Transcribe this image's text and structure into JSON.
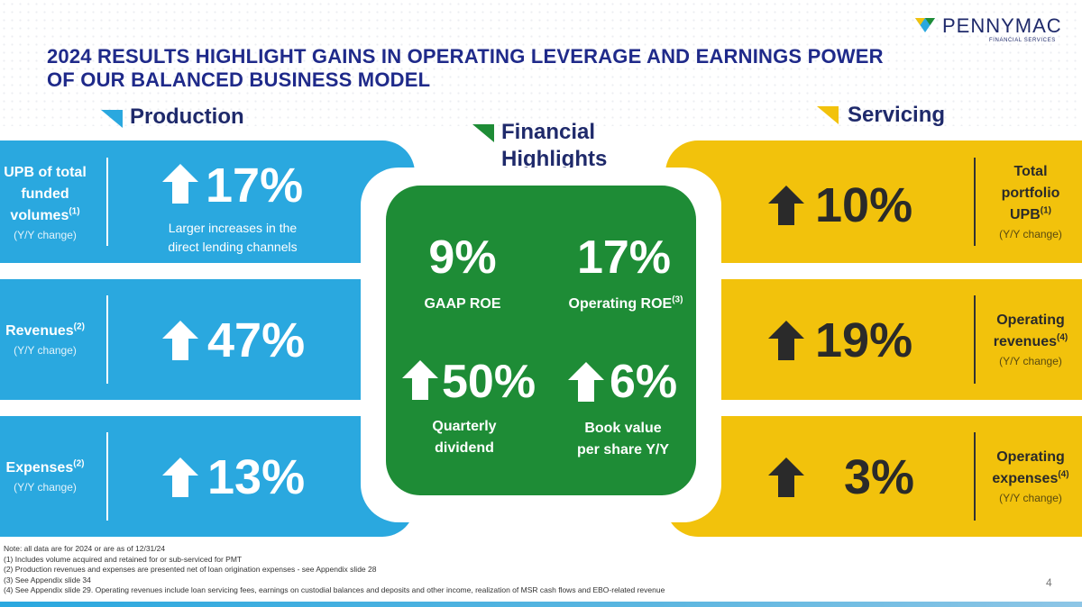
{
  "logo": {
    "name": "PENNYMAC",
    "sub": "FINANCIAL SERVICES"
  },
  "title_line1": "2024 RESULTS HIGHLIGHT GAINS IN OPERATING LEVERAGE AND EARNINGS POWER",
  "title_line2": "OF OUR BALANCED BUSINESS MODEL",
  "colors": {
    "blue": "#2aa8df",
    "yellow": "#f2c20c",
    "green": "#1e8c36",
    "navy": "#1f2a8a"
  },
  "production": {
    "heading": "Production",
    "rows": [
      {
        "label": "UPB of total funded volumes",
        "sup": "(1)",
        "sub": "(Y/Y change)",
        "value": "17%",
        "note1": "Larger increases in the",
        "note2": "direct lending channels"
      },
      {
        "label": "Revenues",
        "sup": "(2)",
        "sub": "(Y/Y change)",
        "value": "47%"
      },
      {
        "label": "Expenses",
        "sup": "(2)",
        "sub": "(Y/Y change)",
        "value": "13%"
      }
    ]
  },
  "financial": {
    "heading1": "Financial",
    "heading2": "Highlights",
    "items": [
      {
        "value": "9%",
        "label": "GAAP ROE"
      },
      {
        "value": "17%",
        "label": "Operating ROE",
        "sup": "(3)"
      },
      {
        "value": "50%",
        "label1": "Quarterly",
        "label2": "dividend"
      },
      {
        "value": "6%",
        "label1": "Book value",
        "label2": "per share Y/Y"
      }
    ]
  },
  "servicing": {
    "heading": "Servicing",
    "rows": [
      {
        "label1": "Total",
        "label2": "portfolio",
        "label3": "UPB",
        "sup": "(1)",
        "sub": "(Y/Y change)",
        "value": "10%"
      },
      {
        "label1": "Operating",
        "label2": "revenues",
        "sup": "(4)",
        "sub": "(Y/Y change)",
        "value": "19%"
      },
      {
        "label1": "Operating",
        "label2": "expenses",
        "sup": "(4)",
        "sub": "(Y/Y change)",
        "value": "3%"
      }
    ]
  },
  "footnotes": [
    "Note: all data are for 2024 or are as of 12/31/24",
    "(1) Includes volume acquired and retained for or sub-serviced for PMT",
    "(2) Production revenues and expenses are presented net of loan origination expenses - see Appendix slide 28",
    "(3) See Appendix slide 34",
    "(4) See Appendix slide 29. Operating revenues include loan servicing fees, earnings on custodial balances and deposits and other income, realization of MSR cash flows and EBO-related revenue"
  ],
  "page_number": "4"
}
